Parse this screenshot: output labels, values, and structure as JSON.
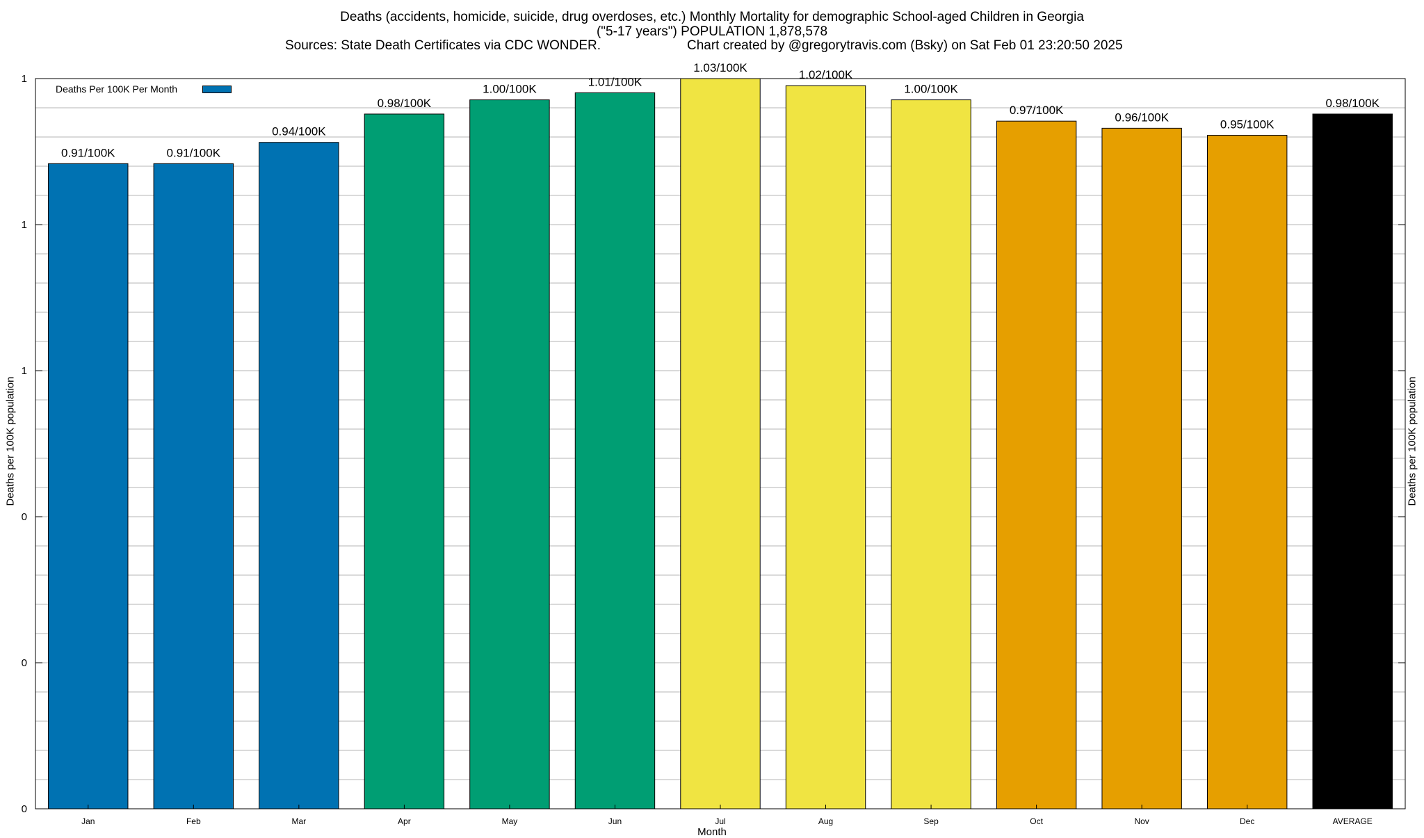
{
  "header": {
    "title_line1": "Deaths (accidents, homicide, suicide, drug overdoses, etc.) Monthly Mortality for demographic School-aged Children in Georgia",
    "title_line2": "(\"5-17 years\") POPULATION 1,878,578",
    "sources": "Sources: State Death Certificates via CDC WONDER.",
    "credit": "Chart created by @gregorytravis.com (Bsky) on Sat Feb 01 23:20:50 2025"
  },
  "chart_data": {
    "type": "bar",
    "categories": [
      "Jan",
      "Feb",
      "Mar",
      "Apr",
      "May",
      "Jun",
      "Jul",
      "Aug",
      "Sep",
      "Oct",
      "Nov",
      "Dec",
      "AVERAGE"
    ],
    "series": [
      {
        "name": "Deaths Per 100K Per Month",
        "values": [
          0.91,
          0.91,
          0.94,
          0.98,
          1.0,
          1.01,
          1.03,
          1.02,
          1.0,
          0.97,
          0.96,
          0.95,
          0.98
        ]
      }
    ],
    "data_labels": [
      "0.91/100K",
      "0.91/100K",
      "0.94/100K",
      "0.98/100K",
      "1.00/100K",
      "1.01/100K",
      "1.03/100K",
      "1.02/100K",
      "1.00/100K",
      "0.97/100K",
      "0.96/100K",
      "0.95/100K",
      "0.98/100K"
    ],
    "bar_colors": [
      "#0072b2",
      "#0072b2",
      "#0072b2",
      "#009e73",
      "#009e73",
      "#009e73",
      "#f0e442",
      "#f0e442",
      "#f0e442",
      "#e69f00",
      "#e69f00",
      "#e69f00",
      "#000000"
    ],
    "xlabel": "Month",
    "ylabel": "Deaths per 100K population",
    "y2label": "Deaths per 100K population",
    "ytick_labels": [
      "0",
      "0",
      "0",
      "1",
      "1",
      "1"
    ],
    "ylim": [
      0,
      1.03
    ],
    "grid": true,
    "legend_position": "top-left"
  }
}
